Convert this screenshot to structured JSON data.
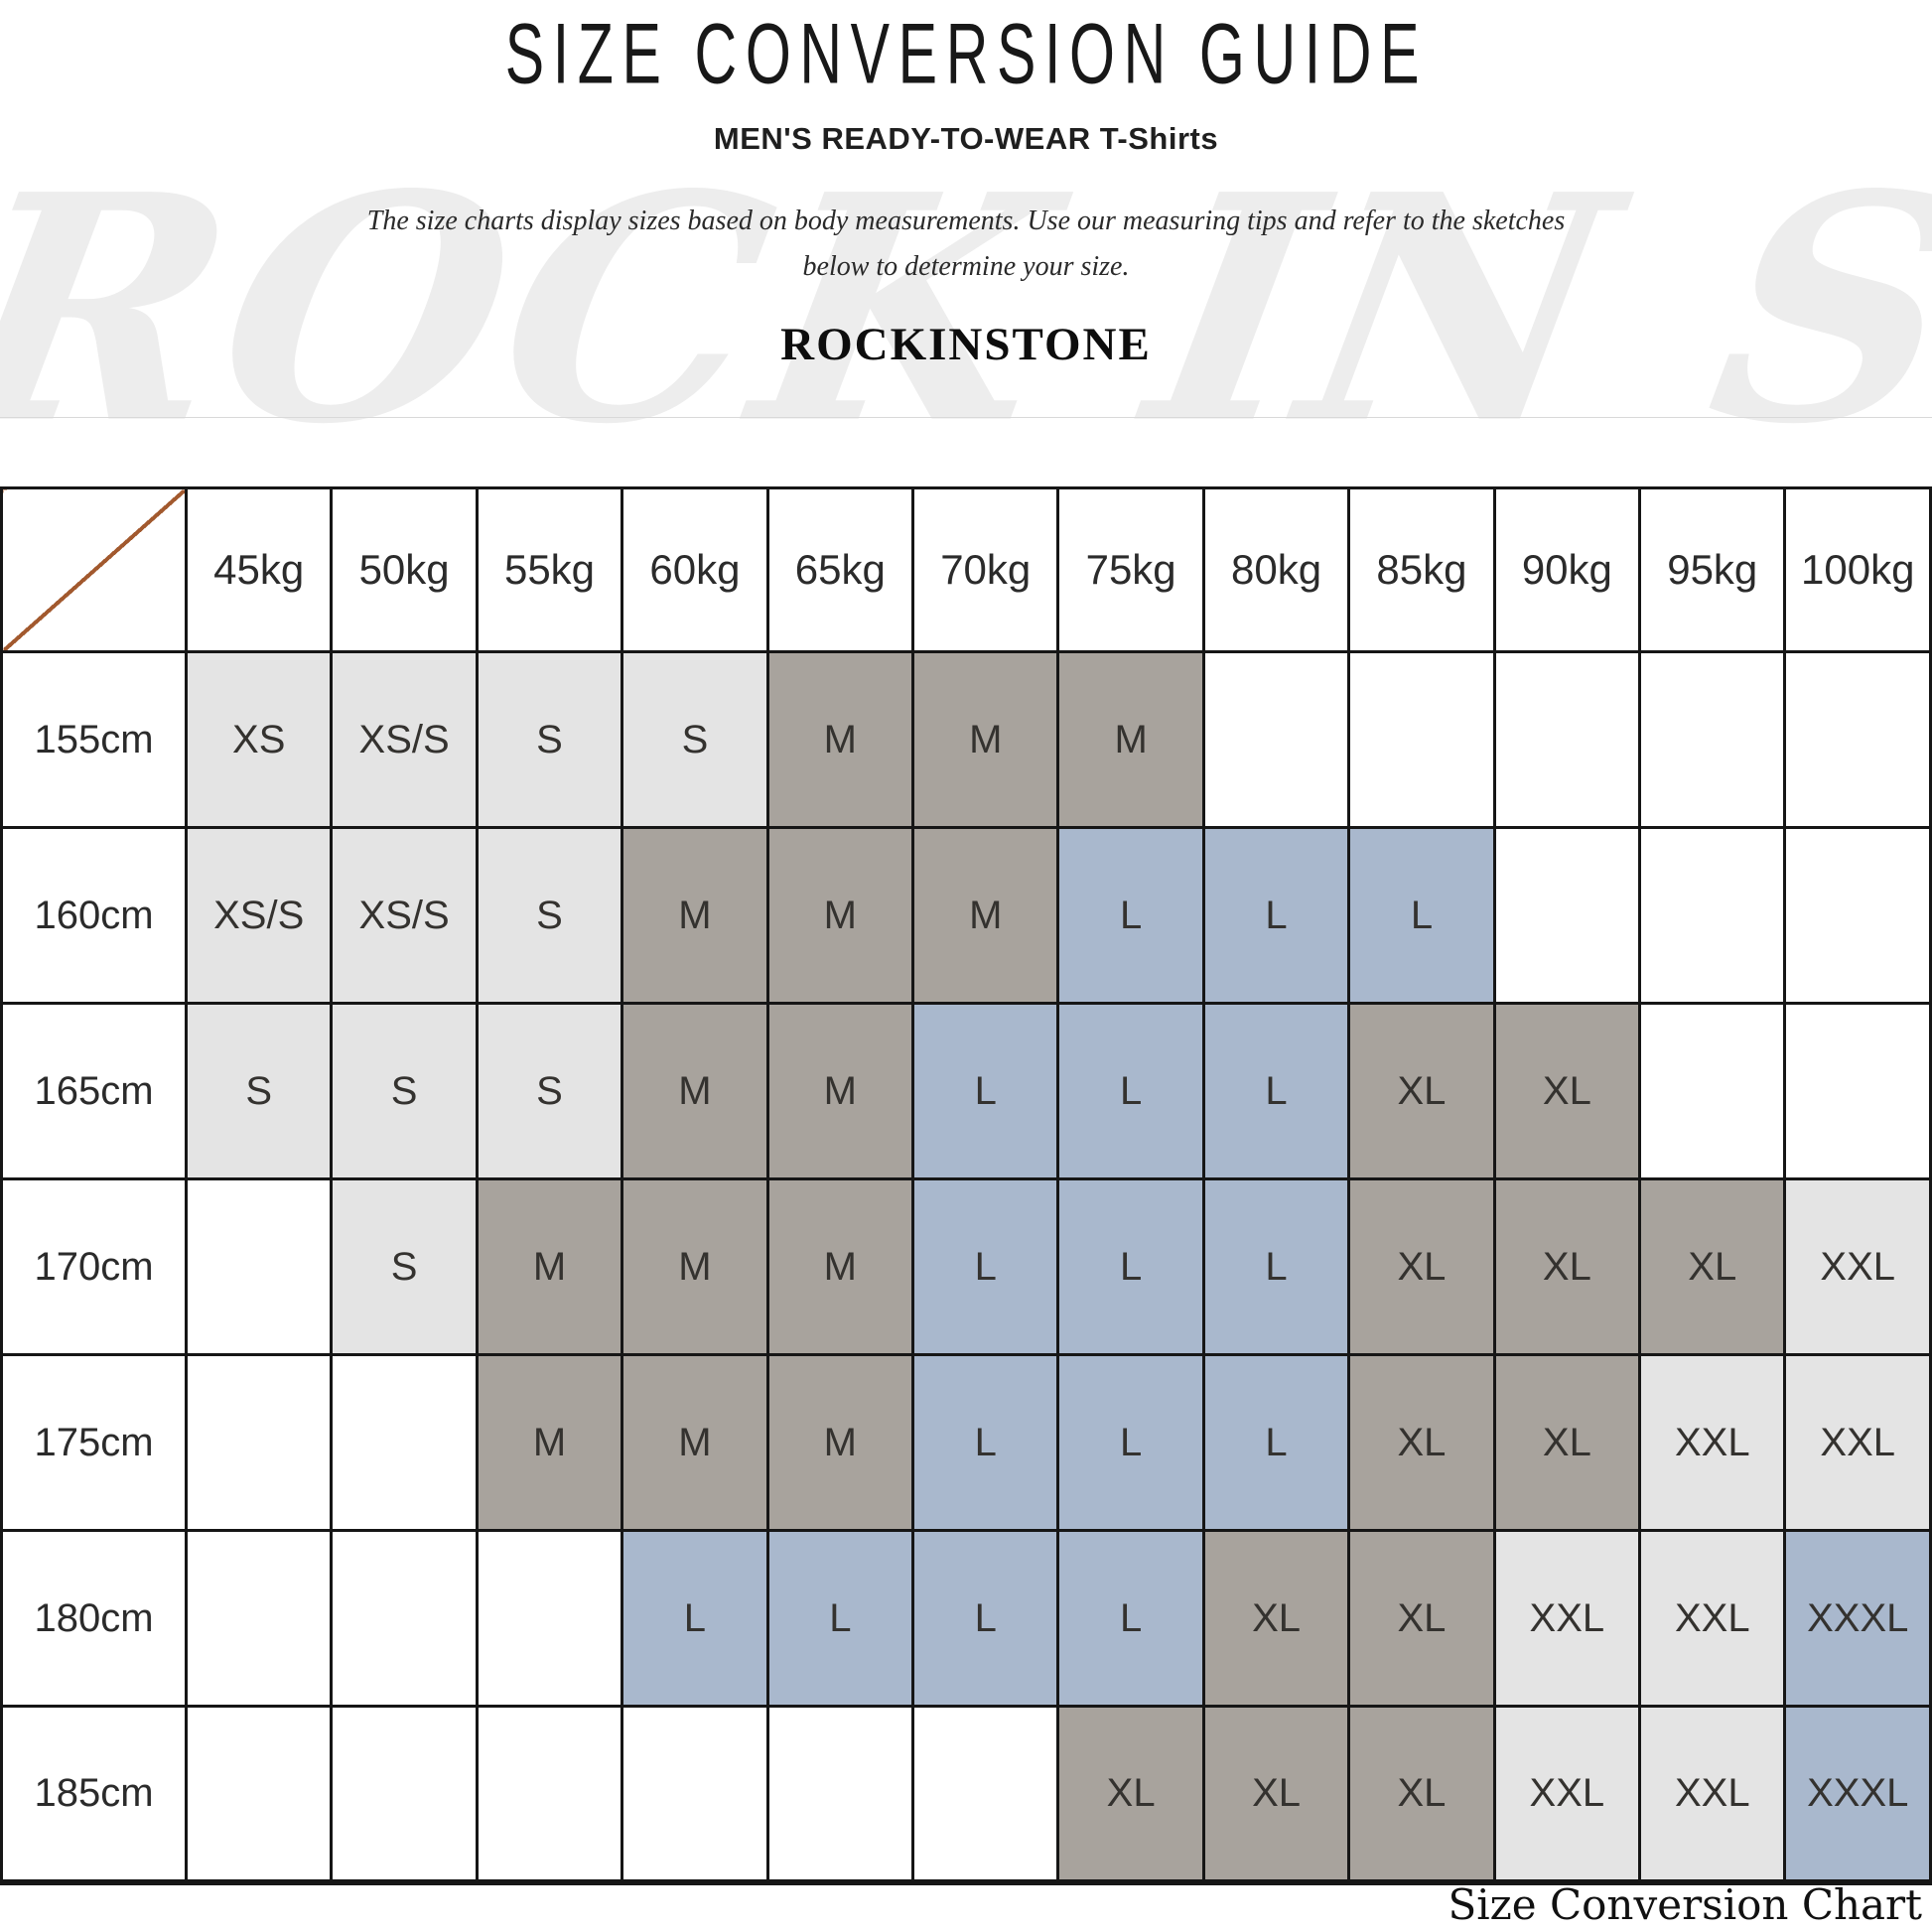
{
  "page": {
    "title": "SIZE CONVERSION GUIDE",
    "subtitle": "MEN'S READY-TO-WEAR T-Shirts",
    "description_line1": "The size charts display sizes based on body measurements.  Use our measuring tips and refer to the sketches",
    "description_line2": "below to determine your size.",
    "brand": "ROCKINSTONE",
    "watermark": "ROCK IN STONE",
    "footer_caption": "Size Conversion Chart"
  },
  "colors": {
    "cell_light": "#e4e4e4",
    "cell_taupe": "#a8a39d",
    "cell_blue": "#a9b8cd",
    "diagonal_line": "#a2592e",
    "grid_border": "#161616"
  },
  "chart_data": {
    "type": "table",
    "title": "SIZE CONVERSION GUIDE",
    "subtitle": "MEN'S READY-TO-WEAR T-Shirts",
    "columns": [
      "45kg",
      "50kg",
      "55kg",
      "60kg",
      "65kg",
      "70kg",
      "75kg",
      "80kg",
      "85kg",
      "90kg",
      "95kg",
      "100kg"
    ],
    "rows": [
      {
        "label": "155cm",
        "cells": [
          {
            "v": "XS",
            "s": "light"
          },
          {
            "v": "XS/S",
            "s": "light"
          },
          {
            "v": "S",
            "s": "light"
          },
          {
            "v": "S",
            "s": "light"
          },
          {
            "v": "M",
            "s": "taupe"
          },
          {
            "v": "M",
            "s": "taupe"
          },
          {
            "v": "M",
            "s": "taupe"
          },
          null,
          null,
          null,
          null,
          null
        ]
      },
      {
        "label": "160cm",
        "cells": [
          {
            "v": "XS/S",
            "s": "light"
          },
          {
            "v": "XS/S",
            "s": "light"
          },
          {
            "v": "S",
            "s": "light"
          },
          {
            "v": "M",
            "s": "taupe"
          },
          {
            "v": "M",
            "s": "taupe"
          },
          {
            "v": "M",
            "s": "taupe"
          },
          {
            "v": "L",
            "s": "blue"
          },
          {
            "v": "L",
            "s": "blue"
          },
          {
            "v": "L",
            "s": "blue"
          },
          null,
          null,
          null
        ]
      },
      {
        "label": "165cm",
        "cells": [
          {
            "v": "S",
            "s": "light"
          },
          {
            "v": "S",
            "s": "light"
          },
          {
            "v": "S",
            "s": "light"
          },
          {
            "v": "M",
            "s": "taupe"
          },
          {
            "v": "M",
            "s": "taupe"
          },
          {
            "v": "L",
            "s": "blue"
          },
          {
            "v": "L",
            "s": "blue"
          },
          {
            "v": "L",
            "s": "blue"
          },
          {
            "v": "XL",
            "s": "taupe"
          },
          {
            "v": "XL",
            "s": "taupe"
          },
          null,
          null
        ]
      },
      {
        "label": "170cm",
        "cells": [
          null,
          {
            "v": "S",
            "s": "light"
          },
          {
            "v": "M",
            "s": "taupe"
          },
          {
            "v": "M",
            "s": "taupe"
          },
          {
            "v": "M",
            "s": "taupe"
          },
          {
            "v": "L",
            "s": "blue"
          },
          {
            "v": "L",
            "s": "blue"
          },
          {
            "v": "L",
            "s": "blue"
          },
          {
            "v": "XL",
            "s": "taupe"
          },
          {
            "v": "XL",
            "s": "taupe"
          },
          {
            "v": "XL",
            "s": "taupe"
          },
          {
            "v": "XXL",
            "s": "light"
          }
        ]
      },
      {
        "label": "175cm",
        "cells": [
          null,
          null,
          {
            "v": "M",
            "s": "taupe"
          },
          {
            "v": "M",
            "s": "taupe"
          },
          {
            "v": "M",
            "s": "taupe"
          },
          {
            "v": "L",
            "s": "blue"
          },
          {
            "v": "L",
            "s": "blue"
          },
          {
            "v": "L",
            "s": "blue"
          },
          {
            "v": "XL",
            "s": "taupe"
          },
          {
            "v": "XL",
            "s": "taupe"
          },
          {
            "v": "XXL",
            "s": "light"
          },
          {
            "v": "XXL",
            "s": "light"
          }
        ]
      },
      {
        "label": "180cm",
        "cells": [
          null,
          null,
          null,
          {
            "v": "L",
            "s": "blue"
          },
          {
            "v": "L",
            "s": "blue"
          },
          {
            "v": "L",
            "s": "blue"
          },
          {
            "v": "L",
            "s": "blue"
          },
          {
            "v": "XL",
            "s": "taupe"
          },
          {
            "v": "XL",
            "s": "taupe"
          },
          {
            "v": "XXL",
            "s": "light"
          },
          {
            "v": "XXL",
            "s": "light"
          },
          {
            "v": "XXXL",
            "s": "blue"
          }
        ]
      },
      {
        "label": "185cm",
        "cells": [
          null,
          null,
          null,
          null,
          null,
          null,
          {
            "v": "XL",
            "s": "taupe"
          },
          {
            "v": "XL",
            "s": "taupe"
          },
          {
            "v": "XL",
            "s": "taupe"
          },
          {
            "v": "XXL",
            "s": "light"
          },
          {
            "v": "XXL",
            "s": "light"
          },
          {
            "v": "XXXL",
            "s": "blue"
          }
        ]
      }
    ]
  }
}
